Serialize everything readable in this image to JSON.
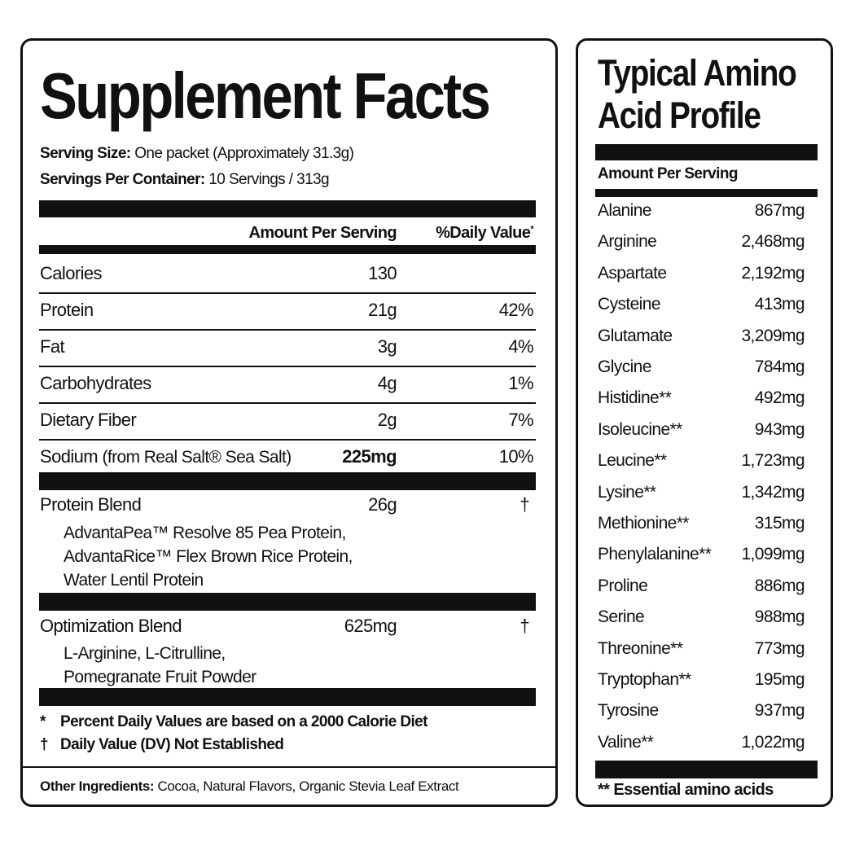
{
  "supplement": {
    "title": "Supplement Facts",
    "serving_size_label": "Serving Size:",
    "serving_size_value": "One packet (Approximately 31.3g)",
    "servings_label": "Servings Per Container:",
    "servings_value": "10 Servings / 313g",
    "header_amount": "Amount Per Serving",
    "header_dv": "%Daily Value",
    "header_dv_mark": "*",
    "rows": [
      {
        "name": "Calories",
        "amount": "130",
        "dv": ""
      },
      {
        "name": "Protein",
        "amount": "21g",
        "dv": "42%"
      },
      {
        "name": "Fat",
        "amount": "3g",
        "dv": "4%"
      },
      {
        "name": "Carbohydrates",
        "amount": "4g",
        "dv": "1%"
      },
      {
        "name": "Dietary Fiber",
        "amount": "2g",
        "dv": "7%"
      },
      {
        "name": "Sodium",
        "note": "(from Real Salt® Sea Salt)",
        "amount": "225mg",
        "dv": "10%"
      }
    ],
    "protein_blend": {
      "name": "Protein Blend",
      "amount": "26g",
      "dv": "†",
      "ingredients": [
        "AdvantaPea™ Resolve 85 Pea Protein,",
        "AdvantaRice™ Flex Brown Rice Protein,",
        "Water Lentil Protein"
      ]
    },
    "optimization_blend": {
      "name": "Optimization Blend",
      "amount": "625mg",
      "dv": "†",
      "ingredients": [
        "L-Arginine, L-Citrulline,",
        "Pomegranate Fruit Powder"
      ]
    },
    "footnotes": [
      {
        "mark": "*",
        "text": "Percent Daily Values are based on a 2000 Calorie Diet"
      },
      {
        "mark": "†",
        "text": "Daily Value (DV) Not Established"
      }
    ],
    "other_label": "Other Ingredients:",
    "other_value": "Cocoa, Natural Flavors, Organic Stevia Leaf Extract"
  },
  "amino": {
    "title_line1": "Typical Amino",
    "title_line2": "Acid Profile",
    "header": "Amount Per Serving",
    "rows": [
      {
        "name": "Alanine",
        "value": "867mg"
      },
      {
        "name": "Arginine",
        "value": "2,468mg"
      },
      {
        "name": "Aspartate",
        "value": "2,192mg"
      },
      {
        "name": "Cysteine",
        "value": "413mg"
      },
      {
        "name": "Glutamate",
        "value": "3,209mg"
      },
      {
        "name": "Glycine",
        "value": "784mg"
      },
      {
        "name": "Histidine**",
        "value": "492mg"
      },
      {
        "name": "Isoleucine**",
        "value": "943mg"
      },
      {
        "name": "Leucine**",
        "value": "1,723mg"
      },
      {
        "name": "Lysine**",
        "value": "1,342mg"
      },
      {
        "name": "Methionine**",
        "value": "315mg"
      },
      {
        "name": "Phenylalanine**",
        "value": "1,099mg"
      },
      {
        "name": "Proline",
        "value": "886mg"
      },
      {
        "name": "Serine",
        "value": "988mg"
      },
      {
        "name": "Threonine**",
        "value": "773mg"
      },
      {
        "name": "Tryptophan**",
        "value": "195mg"
      },
      {
        "name": "Tyrosine",
        "value": "937mg"
      },
      {
        "name": "Valine**",
        "value": "1,022mg"
      }
    ],
    "footnote": "** Essential amino acids"
  }
}
